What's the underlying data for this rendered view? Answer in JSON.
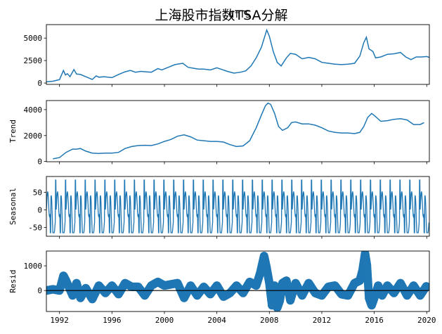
{
  "figure": {
    "title": "上海股市指数TSA分解",
    "title_overlay": "dfTS"
  },
  "chart_data": [
    {
      "type": "line",
      "panel": "observed",
      "ylabel": "",
      "xlim": [
        1991,
        2020.2
      ],
      "ylim": [
        -150,
        6500
      ],
      "yticks": [
        0,
        2500,
        5000
      ],
      "color": "#1f77b4",
      "x": [
        1991.0,
        1991.5,
        1992.0,
        1992.3,
        1992.45,
        1992.6,
        1992.8,
        1993.1,
        1993.3,
        1993.6,
        1994.0,
        1994.5,
        1994.8,
        1995.0,
        1995.4,
        1996.0,
        1996.5,
        1997.0,
        1997.4,
        1997.8,
        1998.2,
        1998.6,
        1999.0,
        1999.5,
        1999.8,
        2000.2,
        2000.8,
        2001.4,
        2001.8,
        2002.2,
        2002.6,
        2003.0,
        2003.5,
        2004.0,
        2004.3,
        2004.8,
        2005.3,
        2005.8,
        2006.2,
        2006.6,
        2007.0,
        2007.4,
        2007.8,
        2008.0,
        2008.3,
        2008.6,
        2008.9,
        2009.3,
        2009.6,
        2010.0,
        2010.5,
        2011.0,
        2011.5,
        2012.0,
        2012.5,
        2013.0,
        2013.5,
        2014.0,
        2014.5,
        2014.9,
        2015.2,
        2015.4,
        2015.6,
        2015.9,
        2016.1,
        2016.5,
        2017.0,
        2017.5,
        2018.0,
        2018.4,
        2018.8,
        2019.2,
        2019.6,
        2020.0,
        2020.2
      ],
      "y": [
        130,
        200,
        380,
        1400,
        900,
        1050,
        700,
        1500,
        1000,
        950,
        700,
        400,
        800,
        650,
        700,
        600,
        950,
        1250,
        1400,
        1200,
        1300,
        1250,
        1200,
        1600,
        1450,
        1700,
        2050,
        2200,
        1750,
        1650,
        1550,
        1550,
        1450,
        1700,
        1550,
        1300,
        1100,
        1200,
        1350,
        1900,
        2800,
        4000,
        5900,
        5200,
        3500,
        2300,
        1900,
        2800,
        3300,
        3200,
        2700,
        2850,
        2700,
        2300,
        2200,
        2100,
        2050,
        2100,
        2200,
        3000,
        4500,
        5100,
        3800,
        3500,
        2800,
        2900,
        3200,
        3250,
        3400,
        2900,
        2600,
        2900,
        2900,
        2950,
        2850
      ]
    },
    {
      "type": "line",
      "panel": "trend",
      "ylabel": "Trend",
      "xlim": [
        1991,
        2020.2
      ],
      "ylim": [
        -20,
        4700
      ],
      "yticks": [
        0,
        2000,
        4000
      ],
      "color": "#1f77b4",
      "x": [
        1991.5,
        1992.0,
        1992.5,
        1993.0,
        1993.3,
        1993.6,
        1994.0,
        1994.5,
        1995.0,
        1995.5,
        1996.0,
        1996.5,
        1997.0,
        1997.5,
        1998.0,
        1998.5,
        1999.0,
        1999.5,
        2000.0,
        2000.5,
        2001.0,
        2001.5,
        2002.0,
        2002.5,
        2003.0,
        2003.5,
        2004.0,
        2004.5,
        2005.0,
        2005.5,
        2006.0,
        2006.5,
        2007.0,
        2007.4,
        2007.7,
        2007.9,
        2008.1,
        2008.4,
        2008.7,
        2009.0,
        2009.4,
        2009.7,
        2010.0,
        2010.5,
        2011.0,
        2011.5,
        2012.0,
        2012.5,
        2013.0,
        2013.5,
        2014.0,
        2014.5,
        2014.9,
        2015.2,
        2015.5,
        2015.8,
        2016.0,
        2016.5,
        2017.0,
        2017.5,
        2018.0,
        2018.5,
        2019.0,
        2019.5,
        2019.8
      ],
      "y": [
        200,
        300,
        700,
        950,
        950,
        1000,
        800,
        650,
        620,
        650,
        650,
        700,
        1000,
        1150,
        1230,
        1250,
        1230,
        1350,
        1550,
        1700,
        1950,
        2050,
        1900,
        1650,
        1600,
        1550,
        1550,
        1500,
        1300,
        1150,
        1200,
        1600,
        2600,
        3600,
        4300,
        4500,
        4400,
        3700,
        2700,
        2400,
        2600,
        3000,
        3050,
        2900,
        2900,
        2800,
        2600,
        2350,
        2250,
        2200,
        2200,
        2150,
        2250,
        2700,
        3400,
        3700,
        3550,
        3100,
        3150,
        3250,
        3300,
        3200,
        2850,
        2850,
        3000
      ]
    },
    {
      "type": "line",
      "panel": "seasonal",
      "ylabel": "Seasonal",
      "xlim": [
        1991,
        2020.2
      ],
      "ylim": [
        -75,
        95
      ],
      "yticks": [
        -50,
        0,
        50
      ],
      "color": "#1f77b4",
      "period_years": 0.75,
      "x_start": 1991.0,
      "x_end": 2020.2,
      "amplitude_max": 85,
      "amplitude_min": -65
    },
    {
      "type": "scatter",
      "panel": "resid",
      "ylabel": "Resid",
      "xlim": [
        1991,
        2020.2
      ],
      "ylim": [
        -850,
        1600
      ],
      "yticks": [
        0,
        1000
      ],
      "color": "#1f77b4",
      "zero_line": true,
      "x": [
        1991.0,
        1991.5,
        1992.0,
        1992.3,
        1992.5,
        1993.0,
        1993.3,
        1993.6,
        1994.0,
        1994.5,
        1995.0,
        1995.5,
        1996.0,
        1996.5,
        1997.0,
        1997.5,
        1998.0,
        1998.5,
        1999.0,
        1999.5,
        2000.0,
        2000.5,
        2001.0,
        2001.5,
        2002.0,
        2002.5,
        2003.0,
        2003.5,
        2004.0,
        2004.5,
        2005.0,
        2005.5,
        2006.0,
        2006.5,
        2007.0,
        2007.3,
        2007.6,
        2007.8,
        2008.0,
        2008.2,
        2008.4,
        2008.6,
        2008.8,
        2009.0,
        2009.3,
        2009.6,
        2010.0,
        2010.5,
        2011.0,
        2011.5,
        2012.0,
        2012.5,
        2013.0,
        2013.5,
        2014.0,
        2014.5,
        2014.9,
        2015.1,
        2015.3,
        2015.45,
        2015.6,
        2015.8,
        2016.0,
        2016.3,
        2016.6,
        2017.0,
        2017.5,
        2018.0,
        2018.5,
        2019.0,
        2019.5,
        2020.0
      ],
      "y": [
        0,
        50,
        0,
        600,
        400,
        -200,
        300,
        -300,
        100,
        -350,
        200,
        -100,
        200,
        -150,
        300,
        150,
        150,
        -200,
        200,
        350,
        200,
        250,
        300,
        -300,
        200,
        -200,
        150,
        -150,
        200,
        -250,
        -100,
        200,
        -100,
        350,
        200,
        700,
        1400,
        900,
        300,
        -600,
        200,
        -700,
        -400,
        300,
        400,
        -400,
        300,
        -200,
        300,
        -100,
        -200,
        150,
        200,
        -150,
        -200,
        300,
        400,
        800,
        1500,
        1000,
        -300,
        -600,
        -300,
        200,
        -200,
        200,
        -100,
        300,
        -200,
        200,
        -200,
        200
      ]
    }
  ],
  "x_tick_labels": [
    "1992",
    "1996",
    "2000",
    "2004",
    "2008",
    "2012",
    "2016",
    "2020"
  ],
  "x_tick_values": [
    1992,
    1996,
    2000,
    2004,
    2008,
    2012,
    2016,
    2020
  ]
}
